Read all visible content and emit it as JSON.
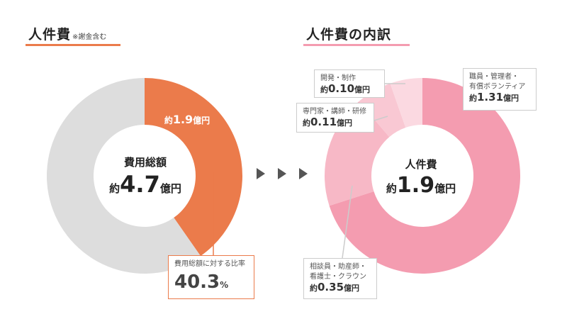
{
  "left": {
    "title": "人件費",
    "title_note": "※謝金含む",
    "center_label": "費用総額",
    "center_prefix": "約",
    "center_value": "4.7",
    "center_unit": "億円",
    "slice_label_prefix": "約",
    "slice_label_value": "1.9",
    "slice_label_unit": "億円",
    "ratio_label": "費用総額に対する比率",
    "ratio_value": "40.3",
    "ratio_unit": "%"
  },
  "right": {
    "title": "人件費の内訳",
    "center_label": "人件費",
    "center_prefix": "約",
    "center_value": "1.9",
    "center_unit": "億円",
    "labels": [
      {
        "line1": "開発・制作",
        "line2": "",
        "prefix": "約",
        "value": "0.10",
        "unit": "億円"
      },
      {
        "line1": "専門家・講師・研修",
        "line2": "",
        "prefix": "約",
        "value": "0.11",
        "unit": "億円"
      },
      {
        "line1": "職員・管理者・",
        "line2": "有償ボランティア",
        "prefix": "約",
        "value": "1.31",
        "unit": "億円"
      },
      {
        "line1": "相談員・助産師・",
        "line2": "看護士・クラウン",
        "prefix": "約",
        "value": "0.35",
        "unit": "億円"
      }
    ]
  },
  "colors": {
    "orange": "#EB7B4B",
    "grey": "#DDDDDD",
    "pink_main": "#F49CB0",
    "pink_2": "#F7B8C6",
    "pink_3": "#F9C8D3",
    "pink_4": "#FBD9E1",
    "arrow": "#555555"
  },
  "chart_data": [
    {
      "type": "pie",
      "categories": [
        "人件費",
        ""
      ],
      "values": [
        40.3,
        59.7
      ],
      "title": "人件費"
    },
    {
      "type": "pie",
      "categories": [
        "職員・管理者・有償ボランティア",
        "相談員・助産師・看護士・クラウン",
        "専門家・講師・研修",
        "開発・制作"
      ],
      "values": [
        1.31,
        0.35,
        0.11,
        0.1
      ],
      "title": "人件費の内訳"
    }
  ]
}
